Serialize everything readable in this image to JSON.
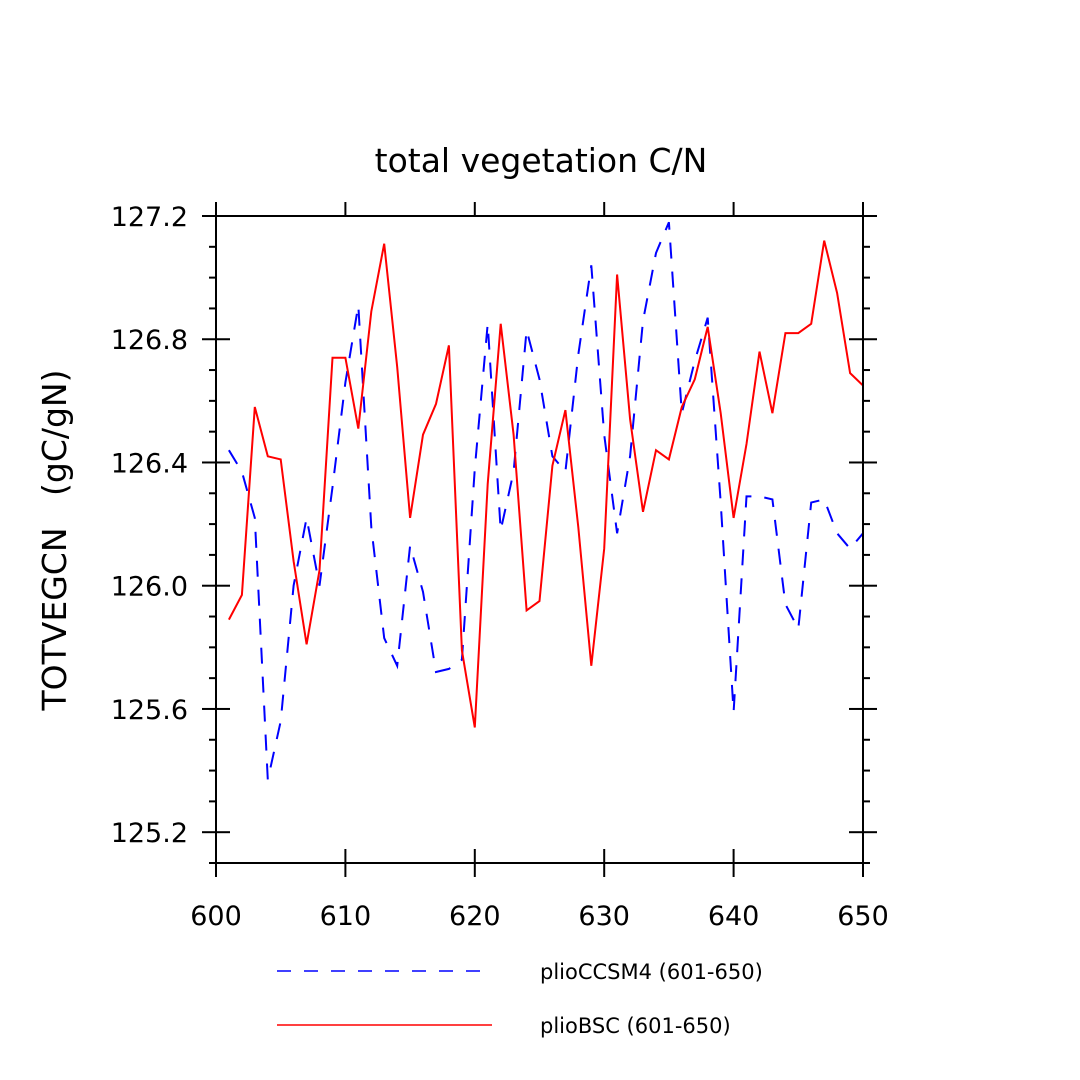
{
  "chart_data": {
    "type": "line",
    "title": "total vegetation C/N",
    "xlabel": "",
    "ylabel": "TOTVEGCN   (gC/gN)",
    "xlim": [
      600,
      650
    ],
    "ylim": [
      125.1,
      127.2
    ],
    "x_ticks": [
      600,
      610,
      620,
      630,
      640,
      650
    ],
    "x_tick_labels": [
      "600",
      "610",
      "620",
      "630",
      "640",
      "650"
    ],
    "y_ticks": [
      125.2,
      125.6,
      126.0,
      126.4,
      126.8,
      127.2
    ],
    "y_tick_labels": [
      "125.2",
      "125.6",
      "126.0",
      "126.4",
      "126.8",
      "127.2"
    ],
    "legend_position": "bottom",
    "grid": false,
    "x": [
      601,
      602,
      603,
      604,
      605,
      606,
      607,
      608,
      609,
      610,
      611,
      612,
      613,
      614,
      615,
      616,
      617,
      618,
      619,
      620,
      621,
      622,
      623,
      624,
      625,
      626,
      627,
      628,
      629,
      630,
      631,
      632,
      633,
      634,
      635,
      636,
      637,
      638,
      639,
      640,
      641,
      642,
      643,
      644,
      645,
      646,
      647,
      648,
      649,
      650
    ],
    "series": [
      {
        "name": "plioCCSM4 (601-650)",
        "color": "#0000ff",
        "dash": "dashed",
        "values": [
          126.44,
          126.37,
          126.22,
          125.37,
          125.56,
          126.0,
          126.22,
          126.0,
          126.32,
          126.66,
          126.91,
          126.19,
          125.83,
          125.74,
          126.13,
          125.98,
          125.72,
          125.73,
          125.76,
          126.38,
          126.85,
          126.18,
          126.37,
          126.83,
          126.67,
          126.42,
          126.37,
          126.75,
          127.04,
          126.49,
          126.17,
          126.42,
          126.86,
          127.08,
          127.18,
          126.56,
          126.73,
          126.87,
          126.27,
          125.59,
          126.29,
          126.29,
          126.28,
          125.94,
          125.86,
          126.27,
          126.28,
          126.17,
          126.12,
          126.17
        ]
      },
      {
        "name": "plioBSC (601-650)",
        "color": "#ff0000",
        "dash": "solid",
        "values": [
          125.89,
          125.97,
          126.58,
          126.42,
          126.41,
          126.08,
          125.81,
          126.05,
          126.74,
          126.74,
          126.51,
          126.89,
          127.11,
          126.71,
          126.22,
          126.49,
          126.59,
          126.78,
          125.79,
          125.54,
          126.33,
          126.85,
          126.49,
          125.92,
          125.95,
          126.39,
          126.57,
          126.19,
          125.74,
          126.12,
          127.01,
          126.54,
          126.24,
          126.44,
          126.41,
          126.58,
          126.67,
          126.84,
          126.56,
          126.22,
          126.46,
          126.76,
          126.56,
          126.82,
          126.82,
          126.85,
          127.12,
          126.95,
          126.69,
          126.65
        ]
      }
    ]
  }
}
